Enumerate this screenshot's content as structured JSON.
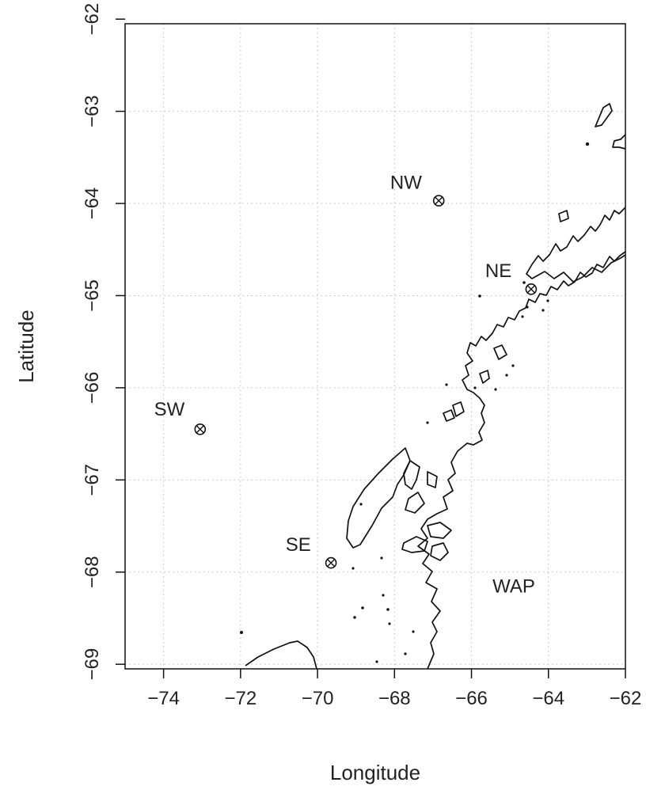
{
  "map": {
    "xlabel": "Longitude",
    "ylabel": "Latitude",
    "xlim": [
      -75,
      -62
    ],
    "ylim": [
      -69.05,
      -62.05
    ],
    "x_ticks": [
      -74,
      -72,
      -70,
      -68,
      -66,
      -64,
      -62
    ],
    "y_ticks": [
      -62,
      -63,
      -64,
      -65,
      -66,
      -67,
      -68,
      -69
    ],
    "grid": true,
    "grid_style": "dotted",
    "region_label": {
      "text": "WAP",
      "lon": -64.9,
      "lat": -68.22
    },
    "sites": [
      {
        "name": "NW",
        "lon": -66.85,
        "lat": -63.97,
        "label_lon": -67.7,
        "label_lat": -63.84
      },
      {
        "name": "NE",
        "lon": -64.45,
        "lat": -64.93,
        "label_lon": -65.3,
        "label_lat": -64.8
      },
      {
        "name": "SW",
        "lon": -73.05,
        "lat": -66.45,
        "label_lon": -73.85,
        "label_lat": -66.3
      },
      {
        "name": "SE",
        "lon": -69.65,
        "lat": -67.9,
        "label_lon": -70.5,
        "label_lat": -67.77
      }
    ],
    "marker_symbol": "circle-with-x",
    "colors": {
      "coastline": "#111111",
      "grid": "#bdbdbd",
      "text": "#222222"
    }
  }
}
